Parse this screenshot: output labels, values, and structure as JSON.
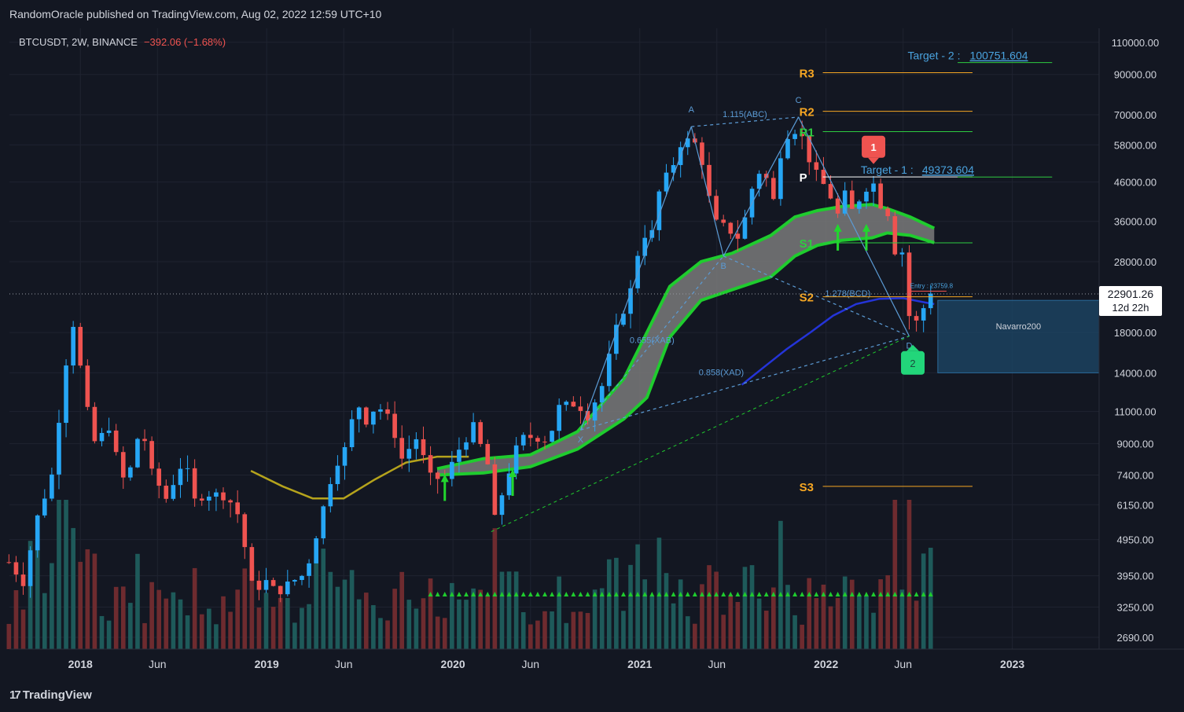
{
  "header": {
    "published_line": "RandomOracle published on TradingView.com, Aug 02, 2022 12:59 UTC+10"
  },
  "legend": {
    "symbol": "BTCUSDT, 2W, BINANCE",
    "change": "−392.06 (−1.68%)"
  },
  "footer": {
    "brand": "TradingView"
  },
  "colors": {
    "background": "#131722",
    "up": "#26a6f5",
    "down": "#ef5350",
    "grid": "#1f2330",
    "ribbon_line": "#1fcc2e",
    "ribbon_fill": "#7a7a7a",
    "yellow_ma": "#b5a31c",
    "blue_ma": "#2434d8",
    "pattern": "#5b9bd5",
    "pivot_orange": "#f5a623",
    "pivot_green": "#2ecc40",
    "target_blue": "#4aa3df"
  },
  "chart_data": {
    "type": "candlestick",
    "title": "BTCUSDT, 2W, BINANCE",
    "y_scale": "log",
    "ylim": [
      2500,
      120000
    ],
    "xlim": [
      "2017-08-15",
      "2023-06-20"
    ],
    "y_ticks": [
      "110000.00",
      "90000.00",
      "70000.00",
      "58000.00",
      "46000.00",
      "36000.00",
      "28000.00",
      "18000.00",
      "14000.00",
      "11000.00",
      "9000.00",
      "7400.00",
      "6150.00",
      "4950.00",
      "3950.00",
      "3250.00",
      "2690.00"
    ],
    "x_ticks": [
      {
        "label": "2018",
        "date": "2018-01-01",
        "bold": true
      },
      {
        "label": "Jun",
        "date": "2018-06-01"
      },
      {
        "label": "2019",
        "date": "2019-01-01",
        "bold": true
      },
      {
        "label": "Jun",
        "date": "2019-06-01"
      },
      {
        "label": "2020",
        "date": "2020-01-01",
        "bold": true
      },
      {
        "label": "Jun",
        "date": "2020-06-01"
      },
      {
        "label": "2021",
        "date": "2021-01-01",
        "bold": true
      },
      {
        "label": "Jun",
        "date": "2021-06-01"
      },
      {
        "label": "2022",
        "date": "2022-01-01",
        "bold": true
      },
      {
        "label": "Jun",
        "date": "2022-06-01"
      },
      {
        "label": "2023",
        "date": "2023-01-01",
        "bold": true
      }
    ],
    "last_price": {
      "label": "22901.26",
      "value": 22901.26,
      "countdown": "12d 22h"
    },
    "anchors": [
      [
        "2017-08-14",
        4300
      ],
      [
        "2017-09-11",
        3800
      ],
      [
        "2017-10-09",
        5700
      ],
      [
        "2017-11-06",
        7400
      ],
      [
        "2017-12-04",
        15000
      ],
      [
        "2017-12-18",
        19000
      ],
      [
        "2018-01-01",
        14500
      ],
      [
        "2018-01-15",
        11000
      ],
      [
        "2018-02-05",
        8300
      ],
      [
        "2018-02-19",
        10800
      ],
      [
        "2018-03-05",
        9300
      ],
      [
        "2018-03-19",
        7500
      ],
      [
        "2018-04-02",
        7000
      ],
      [
        "2018-04-23",
        9300
      ],
      [
        "2018-05-07",
        9200
      ],
      [
        "2018-05-21",
        7500
      ],
      [
        "2018-06-18",
        6400
      ],
      [
        "2018-07-23",
        8200
      ],
      [
        "2018-08-13",
        6300
      ],
      [
        "2018-09-03",
        6600
      ],
      [
        "2018-10-15",
        6500
      ],
      [
        "2018-11-12",
        5600
      ],
      [
        "2018-11-26",
        4000
      ],
      [
        "2018-12-10",
        3500
      ],
      [
        "2018-12-24",
        3900
      ],
      [
        "2019-01-21",
        3550
      ],
      [
        "2019-02-18",
        3800
      ],
      [
        "2019-03-18",
        4000
      ],
      [
        "2019-04-08",
        5100
      ],
      [
        "2019-05-13",
        7800
      ],
      [
        "2019-06-10",
        9000
      ],
      [
        "2019-06-24",
        11900
      ],
      [
        "2019-07-15",
        10400
      ],
      [
        "2019-08-05",
        11500
      ],
      [
        "2019-09-02",
        10300
      ],
      [
        "2019-09-23",
        8200
      ],
      [
        "2019-10-21",
        9300
      ],
      [
        "2019-11-18",
        7300
      ],
      [
        "2019-12-16",
        7200
      ],
      [
        "2020-01-13",
        8700
      ],
      [
        "2020-02-10",
        10000
      ],
      [
        "2020-03-09",
        7900
      ],
      [
        "2020-03-16",
        5200
      ],
      [
        "2020-04-13",
        7100
      ],
      [
        "2020-05-11",
        9300
      ],
      [
        "2020-06-08",
        9400
      ],
      [
        "2020-07-06",
        9200
      ],
      [
        "2020-07-27",
        11300
      ],
      [
        "2020-08-31",
        11600
      ],
      [
        "2020-09-21",
        10700
      ],
      [
        "2020-10-19",
        12900
      ],
      [
        "2020-11-16",
        18400
      ],
      [
        "2020-12-14",
        23400
      ],
      [
        "2021-01-04",
        33000
      ],
      [
        "2021-01-25",
        33500
      ],
      [
        "2021-02-15",
        49000
      ],
      [
        "2021-03-01",
        46000
      ],
      [
        "2021-03-15",
        58000
      ],
      [
        "2021-04-12",
        60000
      ],
      [
        "2021-04-26",
        57000
      ],
      [
        "2021-05-10",
        48000
      ],
      [
        "2021-05-24",
        36000
      ],
      [
        "2021-06-21",
        34500
      ],
      [
        "2021-07-19",
        32000
      ],
      [
        "2021-08-02",
        42000
      ],
      [
        "2021-08-23",
        49000
      ],
      [
        "2021-09-06",
        47000
      ],
      [
        "2021-09-20",
        41000
      ],
      [
        "2021-10-04",
        55000
      ],
      [
        "2021-10-18",
        62000
      ],
      [
        "2021-11-08",
        64500
      ],
      [
        "2021-11-22",
        57000
      ],
      [
        "2021-12-06",
        49500
      ],
      [
        "2021-12-20",
        47000
      ],
      [
        "2022-01-10",
        42000
      ],
      [
        "2022-01-24",
        37500
      ],
      [
        "2022-02-07",
        42500
      ],
      [
        "2022-02-21",
        38500
      ],
      [
        "2022-03-21",
        44500
      ],
      [
        "2022-04-04",
        45500
      ],
      [
        "2022-04-18",
        40000
      ],
      [
        "2022-05-02",
        38000
      ],
      [
        "2022-05-16",
        30000
      ],
      [
        "2022-05-30",
        29800
      ],
      [
        "2022-06-13",
        20000
      ],
      [
        "2022-06-27",
        19200
      ],
      [
        "2022-07-11",
        21000
      ],
      [
        "2022-07-25",
        23300
      ]
    ],
    "ribbon": {
      "upper": [
        [
          "2019-12-01",
          7700
        ],
        [
          "2020-03-01",
          8200
        ],
        [
          "2020-06-01",
          8400
        ],
        [
          "2020-09-01",
          9700
        ],
        [
          "2020-12-01",
          13500
        ],
        [
          "2021-01-15",
          18000
        ],
        [
          "2021-03-01",
          24000
        ],
        [
          "2021-05-01",
          28000
        ],
        [
          "2021-07-01",
          29500
        ],
        [
          "2021-09-15",
          33000
        ],
        [
          "2021-11-01",
          37000
        ],
        [
          "2021-12-15",
          38500
        ],
        [
          "2022-02-01",
          39500
        ],
        [
          "2022-04-01",
          40000
        ],
        [
          "2022-05-01",
          39000
        ],
        [
          "2022-06-15",
          37000
        ],
        [
          "2022-08-01",
          34500
        ]
      ],
      "lower": [
        [
          "2019-12-01",
          7400
        ],
        [
          "2020-03-01",
          7500
        ],
        [
          "2020-06-01",
          7800
        ],
        [
          "2020-09-01",
          8700
        ],
        [
          "2020-12-01",
          10500
        ],
        [
          "2021-01-15",
          12000
        ],
        [
          "2021-03-01",
          17500
        ],
        [
          "2021-05-01",
          22000
        ],
        [
          "2021-07-01",
          23500
        ],
        [
          "2021-09-15",
          25500
        ],
        [
          "2021-11-01",
          29000
        ],
        [
          "2021-12-15",
          31000
        ],
        [
          "2022-02-01",
          32000
        ],
        [
          "2022-04-01",
          32500
        ],
        [
          "2022-05-01",
          33500
        ],
        [
          "2022-06-15",
          33000
        ],
        [
          "2022-08-01",
          31500
        ]
      ]
    },
    "yellow_ma": [
      [
        "2018-12-01",
        7600
      ],
      [
        "2019-02-01",
        6900
      ],
      [
        "2019-04-01",
        6400
      ],
      [
        "2019-06-01",
        6400
      ],
      [
        "2019-08-01",
        7200
      ],
      [
        "2019-10-01",
        8000
      ],
      [
        "2019-12-01",
        8300
      ],
      [
        "2020-02-01",
        8300
      ]
    ],
    "blue_ma": [
      [
        "2021-07-20",
        13000
      ],
      [
        "2021-09-01",
        14500
      ],
      [
        "2021-10-15",
        16200
      ],
      [
        "2021-12-01",
        18000
      ],
      [
        "2022-01-15",
        20000
      ],
      [
        "2022-03-01",
        21500
      ],
      [
        "2022-04-15",
        22200
      ],
      [
        "2022-06-01",
        22300
      ],
      [
        "2022-07-15",
        21700
      ],
      [
        "2022-08-01",
        21500
      ]
    ],
    "harmonic_pattern": {
      "points": [
        {
          "label": "X",
          "date": "2020-09-07",
          "value": 9800
        },
        {
          "label": "A",
          "date": "2021-04-12",
          "value": 65000
        },
        {
          "label": "B",
          "date": "2021-06-14",
          "value": 29000
        },
        {
          "label": "C",
          "date": "2021-11-08",
          "value": 69000
        },
        {
          "label": "D",
          "date": "2022-06-13",
          "value": 17600
        }
      ],
      "ratios": [
        "0.655(XAB)",
        "1.115(ABC)",
        "1.278(BCD)",
        "0.858(XAD)"
      ]
    },
    "pivots": [
      {
        "label": "R3",
        "value": 91000,
        "color": "orange"
      },
      {
        "label": "R2",
        "value": 71500,
        "color": "orange"
      },
      {
        "label": "R1",
        "value": 63000,
        "color": "green"
      },
      {
        "label": "P",
        "value": 47500,
        "color": "white"
      },
      {
        "label": "S1",
        "value": 31500,
        "color": "green"
      },
      {
        "label": "S2",
        "value": 22500,
        "color": "orange"
      },
      {
        "label": "S3",
        "value": 6900,
        "color": "orange"
      }
    ],
    "targets": [
      {
        "label": "Target - 2 : ",
        "value_text": "100751.604",
        "value": 100751.604
      },
      {
        "label": "Target - 1 : ",
        "value_text": "49373.604",
        "value": 49373.604
      }
    ],
    "entry_label": "Entry : 23759.8",
    "zone_label": "Navarro200",
    "zone": {
      "top": 22000,
      "bottom": 14000
    },
    "signals": [
      {
        "label": "1",
        "date": "2022-04-04",
        "value": 49000,
        "kind": "sell"
      },
      {
        "label": "2",
        "date": "2022-06-20",
        "value": 17000,
        "kind": "buy"
      }
    ],
    "buy_arrows": [
      {
        "date": "2019-12-16",
        "value": 6300
      },
      {
        "date": "2020-04-27",
        "value": 6500
      },
      {
        "date": "2022-01-24",
        "value": 30000
      },
      {
        "date": "2022-03-21",
        "value": 30000
      }
    ],
    "volume_marker_start": "2019-11-18",
    "volume_marker_end": "2022-08-01"
  }
}
